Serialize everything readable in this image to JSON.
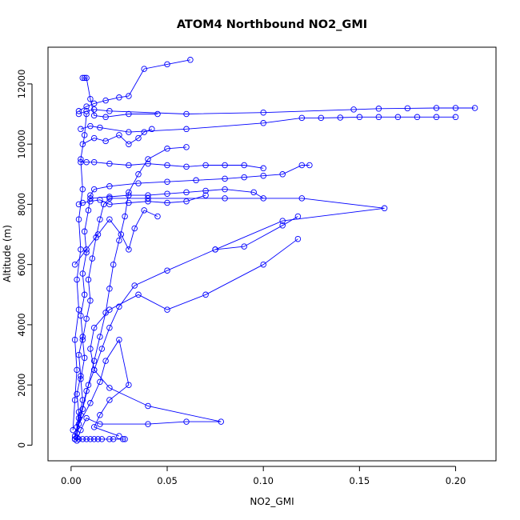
{
  "chart_data": {
    "type": "scatter",
    "title": "ATOM4 Northbound NO2_GMI",
    "xlabel": "NO2_GMI",
    "ylabel": "Altitude (m)",
    "xlim": [
      -0.012,
      0.221
    ],
    "ylim": [
      -520,
      13220
    ],
    "x_ticks": [
      0.0,
      0.05,
      0.1,
      0.15,
      0.2
    ],
    "x_tick_labels": [
      "0.00",
      "0.05",
      "0.10",
      "0.15",
      "0.20"
    ],
    "y_ticks": [
      0,
      2000,
      4000,
      6000,
      8000,
      10000,
      12000
    ],
    "y_tick_labels": [
      "0",
      "2000",
      "4000",
      "6000",
      "8000",
      "10000",
      "12000"
    ],
    "grid": false,
    "marker": "open-circle",
    "color": "#0000ff",
    "series": [
      {
        "values": [
          [
            0.002,
            200
          ],
          [
            0.003,
            600
          ],
          [
            0.004,
            1100
          ],
          [
            0.003,
            1700
          ],
          [
            0.005,
            2300
          ],
          [
            0.004,
            3000
          ],
          [
            0.006,
            3600
          ],
          [
            0.005,
            4300
          ],
          [
            0.007,
            5000
          ],
          [
            0.006,
            5700
          ],
          [
            0.008,
            6400
          ],
          [
            0.007,
            7100
          ],
          [
            0.009,
            7800
          ],
          [
            0.01,
            8300
          ],
          [
            0.012,
            8500
          ],
          [
            0.02,
            8600
          ],
          [
            0.035,
            8700
          ],
          [
            0.05,
            8750
          ],
          [
            0.065,
            8800
          ],
          [
            0.08,
            8850
          ],
          [
            0.09,
            8900
          ],
          [
            0.1,
            8950
          ],
          [
            0.11,
            9000
          ],
          [
            0.12,
            9300
          ],
          [
            0.124,
            9300
          ]
        ]
      },
      {
        "values": [
          [
            0.003,
            250
          ],
          [
            0.004,
            900
          ],
          [
            0.006,
            1500
          ],
          [
            0.005,
            2200
          ],
          [
            0.007,
            2900
          ],
          [
            0.006,
            3500
          ],
          [
            0.008,
            4200
          ],
          [
            0.01,
            4800
          ],
          [
            0.009,
            5500
          ],
          [
            0.011,
            6200
          ],
          [
            0.013,
            6900
          ],
          [
            0.015,
            7500
          ],
          [
            0.017,
            8000
          ],
          [
            0.02,
            8200
          ],
          [
            0.04,
            8200
          ],
          [
            0.08,
            8200
          ],
          [
            0.12,
            8200
          ],
          [
            0.163,
            7870
          ],
          [
            0.11,
            7450
          ],
          [
            0.075,
            6500
          ]
        ]
      },
      {
        "values": [
          [
            0.005,
            10500
          ],
          [
            0.01,
            10600
          ],
          [
            0.015,
            10550
          ],
          [
            0.03,
            10400
          ],
          [
            0.06,
            10500
          ],
          [
            0.1,
            10700
          ],
          [
            0.12,
            10870
          ],
          [
            0.13,
            10870
          ],
          [
            0.14,
            10880
          ],
          [
            0.15,
            10900
          ],
          [
            0.16,
            10900
          ],
          [
            0.17,
            10900
          ],
          [
            0.18,
            10900
          ],
          [
            0.19,
            10900
          ],
          [
            0.2,
            10900
          ]
        ]
      },
      {
        "values": [
          [
            0.004,
            11000
          ],
          [
            0.008,
            11100
          ],
          [
            0.012,
            11150
          ],
          [
            0.02,
            11100
          ],
          [
            0.06,
            11000
          ],
          [
            0.1,
            11050
          ],
          [
            0.147,
            11150
          ],
          [
            0.16,
            11180
          ],
          [
            0.175,
            11190
          ],
          [
            0.19,
            11200
          ],
          [
            0.2,
            11200
          ],
          [
            0.21,
            11200
          ]
        ]
      },
      {
        "values": [
          [
            0.004,
            11100
          ],
          [
            0.008,
            11250
          ],
          [
            0.012,
            11350
          ],
          [
            0.018,
            11450
          ],
          [
            0.025,
            11550
          ],
          [
            0.03,
            11600
          ],
          [
            0.038,
            12500
          ],
          [
            0.05,
            12650
          ],
          [
            0.062,
            12800
          ]
        ]
      },
      {
        "values": [
          [
            0.006,
            12200
          ],
          [
            0.007,
            12200
          ],
          [
            0.008,
            12200
          ],
          [
            0.01,
            11500
          ],
          [
            0.012,
            10950
          ],
          [
            0.018,
            10900
          ],
          [
            0.03,
            11000
          ],
          [
            0.045,
            11000
          ]
        ]
      },
      {
        "values": [
          [
            0.002,
            300
          ],
          [
            0.005,
            1000
          ],
          [
            0.008,
            1800
          ],
          [
            0.012,
            2500
          ],
          [
            0.016,
            3200
          ],
          [
            0.02,
            3900
          ],
          [
            0.025,
            4600
          ],
          [
            0.033,
            5300
          ],
          [
            0.05,
            5800
          ],
          [
            0.075,
            6500
          ],
          [
            0.09,
            6600
          ],
          [
            0.11,
            7300
          ],
          [
            0.118,
            7600
          ]
        ]
      },
      {
        "values": [
          [
            0.003,
            150
          ],
          [
            0.005,
            500
          ],
          [
            0.008,
            900
          ],
          [
            0.015,
            700
          ],
          [
            0.04,
            700
          ],
          [
            0.06,
            780
          ],
          [
            0.078,
            780
          ],
          [
            0.04,
            1300
          ],
          [
            0.02,
            1900
          ],
          [
            0.012,
            2500
          ],
          [
            0.01,
            3200
          ],
          [
            0.012,
            3900
          ],
          [
            0.02,
            4500
          ],
          [
            0.035,
            5000
          ],
          [
            0.05,
            4500
          ],
          [
            0.07,
            5000
          ],
          [
            0.1,
            6000
          ],
          [
            0.118,
            6850
          ]
        ]
      },
      {
        "values": [
          [
            0.01,
            8200
          ],
          [
            0.02,
            8250
          ],
          [
            0.03,
            8300
          ],
          [
            0.04,
            8300
          ],
          [
            0.05,
            8350
          ],
          [
            0.06,
            8400
          ],
          [
            0.07,
            8450
          ],
          [
            0.08,
            8500
          ],
          [
            0.095,
            8400
          ],
          [
            0.1,
            8200
          ]
        ]
      },
      {
        "values": [
          [
            0.005,
            9400
          ],
          [
            0.008,
            9400
          ],
          [
            0.012,
            9400
          ],
          [
            0.02,
            9350
          ],
          [
            0.03,
            9300
          ],
          [
            0.04,
            9350
          ],
          [
            0.05,
            9300
          ],
          [
            0.06,
            9250
          ],
          [
            0.07,
            9300
          ],
          [
            0.08,
            9300
          ],
          [
            0.09,
            9300
          ],
          [
            0.1,
            9200
          ]
        ]
      },
      {
        "values": [
          [
            0.004,
            8000
          ],
          [
            0.006,
            8050
          ],
          [
            0.01,
            8100
          ],
          [
            0.015,
            8150
          ],
          [
            0.02,
            8000
          ],
          [
            0.03,
            8050
          ],
          [
            0.04,
            8100
          ],
          [
            0.05,
            8050
          ],
          [
            0.06,
            8100
          ],
          [
            0.07,
            8300
          ]
        ]
      },
      {
        "values": [
          [
            0.002,
            200
          ],
          [
            0.004,
            200
          ],
          [
            0.006,
            200
          ],
          [
            0.008,
            200
          ],
          [
            0.01,
            200
          ],
          [
            0.012,
            200
          ],
          [
            0.014,
            200
          ],
          [
            0.016,
            200
          ],
          [
            0.02,
            200
          ],
          [
            0.022,
            200
          ],
          [
            0.027,
            200
          ],
          [
            0.028,
            200
          ]
        ]
      },
      {
        "values": [
          [
            0.003,
            400
          ],
          [
            0.006,
            1200
          ],
          [
            0.009,
            2000
          ],
          [
            0.012,
            2800
          ],
          [
            0.015,
            3600
          ],
          [
            0.018,
            4400
          ],
          [
            0.02,
            5200
          ],
          [
            0.022,
            6000
          ],
          [
            0.025,
            6800
          ],
          [
            0.028,
            7600
          ],
          [
            0.03,
            8400
          ],
          [
            0.035,
            9000
          ],
          [
            0.04,
            9500
          ],
          [
            0.05,
            9850
          ],
          [
            0.06,
            9900
          ]
        ]
      },
      {
        "values": [
          [
            0.001,
            500
          ],
          [
            0.002,
            1500
          ],
          [
            0.003,
            2500
          ],
          [
            0.002,
            3500
          ],
          [
            0.004,
            4500
          ],
          [
            0.003,
            5500
          ],
          [
            0.005,
            6500
          ],
          [
            0.004,
            7500
          ],
          [
            0.006,
            8500
          ],
          [
            0.005,
            9500
          ],
          [
            0.007,
            10300
          ],
          [
            0.008,
            11000
          ]
        ]
      },
      {
        "values": [
          [
            0.004,
            700
          ],
          [
            0.01,
            1400
          ],
          [
            0.015,
            2100
          ],
          [
            0.018,
            2800
          ],
          [
            0.025,
            3500
          ],
          [
            0.03,
            2000
          ],
          [
            0.02,
            1500
          ],
          [
            0.015,
            1000
          ],
          [
            0.012,
            600
          ],
          [
            0.025,
            300
          ]
        ]
      },
      {
        "values": [
          [
            0.006,
            10000
          ],
          [
            0.012,
            10200
          ],
          [
            0.018,
            10100
          ],
          [
            0.025,
            10300
          ],
          [
            0.03,
            10000
          ],
          [
            0.035,
            10200
          ],
          [
            0.038,
            10400
          ],
          [
            0.042,
            10500
          ]
        ]
      },
      {
        "values": [
          [
            0.002,
            6000
          ],
          [
            0.008,
            6500
          ],
          [
            0.014,
            7000
          ],
          [
            0.02,
            7500
          ],
          [
            0.026,
            7000
          ],
          [
            0.03,
            6500
          ],
          [
            0.033,
            7200
          ],
          [
            0.038,
            7800
          ],
          [
            0.045,
            7600
          ]
        ]
      }
    ]
  }
}
